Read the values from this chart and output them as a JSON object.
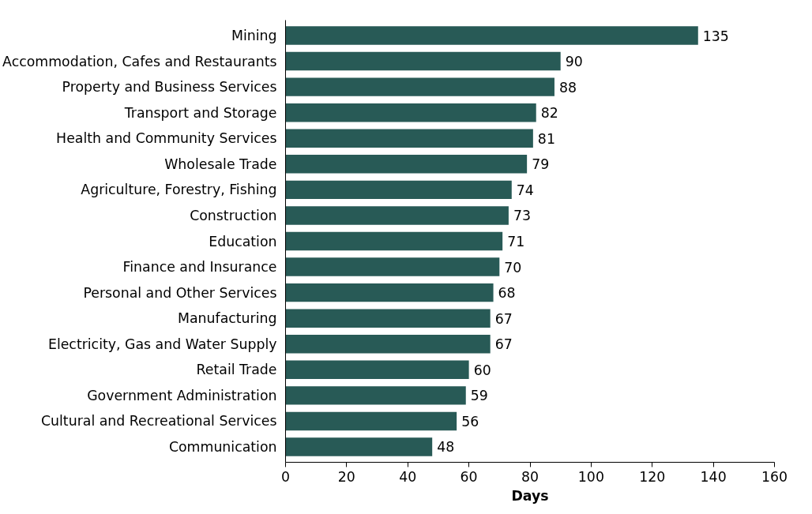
{
  "chart_data": {
    "type": "bar",
    "orientation": "horizontal",
    "xlabel": "Days",
    "categories": [
      "Mining",
      "Accommodation, Cafes and Restaurants",
      "Property and Business Services",
      "Transport and Storage",
      "Health and Community Services",
      "Wholesale Trade",
      "Agriculture, Forestry, Fishing",
      "Construction",
      "Education",
      "Finance and Insurance",
      "Personal and Other Services",
      "Manufacturing",
      "Electricity, Gas and Water Supply",
      "Retail Trade",
      "Government Administration",
      "Cultural and Recreational Services",
      "Communication"
    ],
    "values": [
      135,
      90,
      88,
      82,
      81,
      79,
      74,
      73,
      71,
      70,
      68,
      67,
      67,
      60,
      59,
      56,
      48
    ],
    "color": "#285a56",
    "xlim": [
      0,
      160
    ],
    "xticks": [
      0,
      20,
      40,
      60,
      80,
      100,
      120,
      140,
      160
    ],
    "grid": false,
    "data_labels": true
  }
}
